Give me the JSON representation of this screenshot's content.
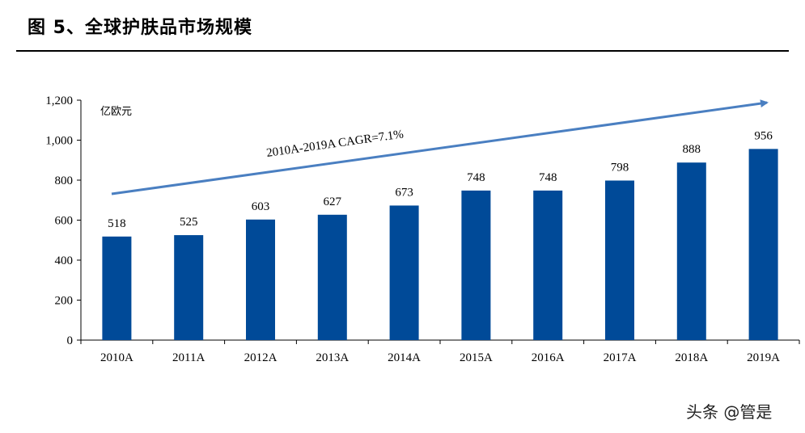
{
  "figure_title": "图 5、全球护肤品市场规模",
  "watermark": "头条 @管是",
  "colors": {
    "bar": "#004a98",
    "arrow": "#4a7fc1",
    "axis": "#000000"
  },
  "chart_data": {
    "type": "bar",
    "title": "",
    "unit_label": "亿欧元",
    "categories": [
      "2010A",
      "2011A",
      "2012A",
      "2013A",
      "2014A",
      "2015A",
      "2016A",
      "2017A",
      "2018A",
      "2019A"
    ],
    "values": [
      518,
      525,
      603,
      627,
      673,
      748,
      748,
      798,
      888,
      956
    ],
    "ylim": [
      0,
      1200
    ],
    "yticks": [
      0,
      200,
      400,
      600,
      800,
      1000,
      1200
    ],
    "ytick_labels": [
      "0",
      "200",
      "400",
      "600",
      "800",
      "1,000",
      "1,200"
    ],
    "grid": false,
    "annotation": "2010A-2019A CAGR=7.1%"
  }
}
